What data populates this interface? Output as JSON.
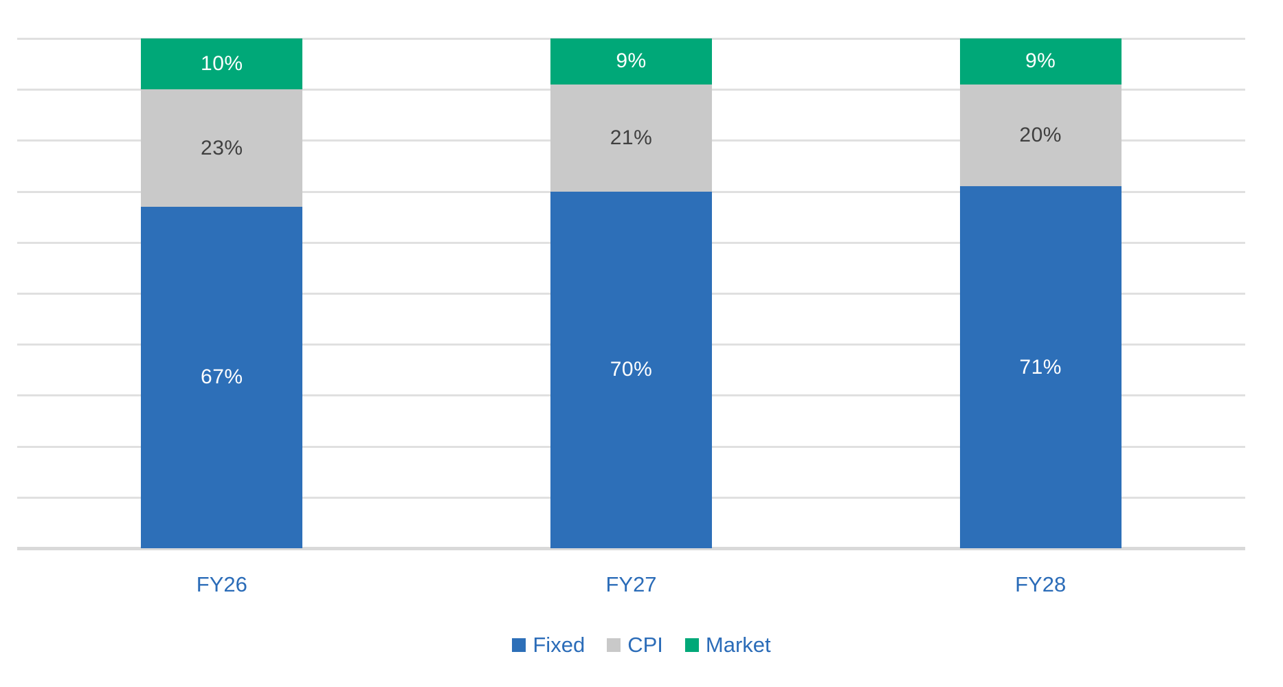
{
  "chart_data": {
    "type": "bar",
    "variant": "stacked-100-percent",
    "title": "",
    "unit": "%",
    "categories": [
      "FY26",
      "FY27",
      "FY28"
    ],
    "series": [
      {
        "name": "Fixed",
        "color": "#2D6FB8",
        "label_color": "#FFFFFF",
        "values": [
          67,
          70,
          71
        ]
      },
      {
        "name": "CPI",
        "color": "#C9C9C9",
        "label_color": "#404040",
        "values": [
          23,
          21,
          20
        ]
      },
      {
        "name": "Market",
        "color": "#00A878",
        "label_color": "#FFFFFF",
        "values": [
          10,
          9,
          9
        ]
      }
    ],
    "xlabel": "",
    "ylabel": "",
    "ylim": [
      0,
      100
    ],
    "gridline_step": 10,
    "grid": true,
    "legend_position": "bottom",
    "axis_label_color": "#2B6CB8",
    "gridline_color": "#E0E0E0",
    "baseline_color": "#D9D9D9",
    "background": "#FFFFFF"
  }
}
